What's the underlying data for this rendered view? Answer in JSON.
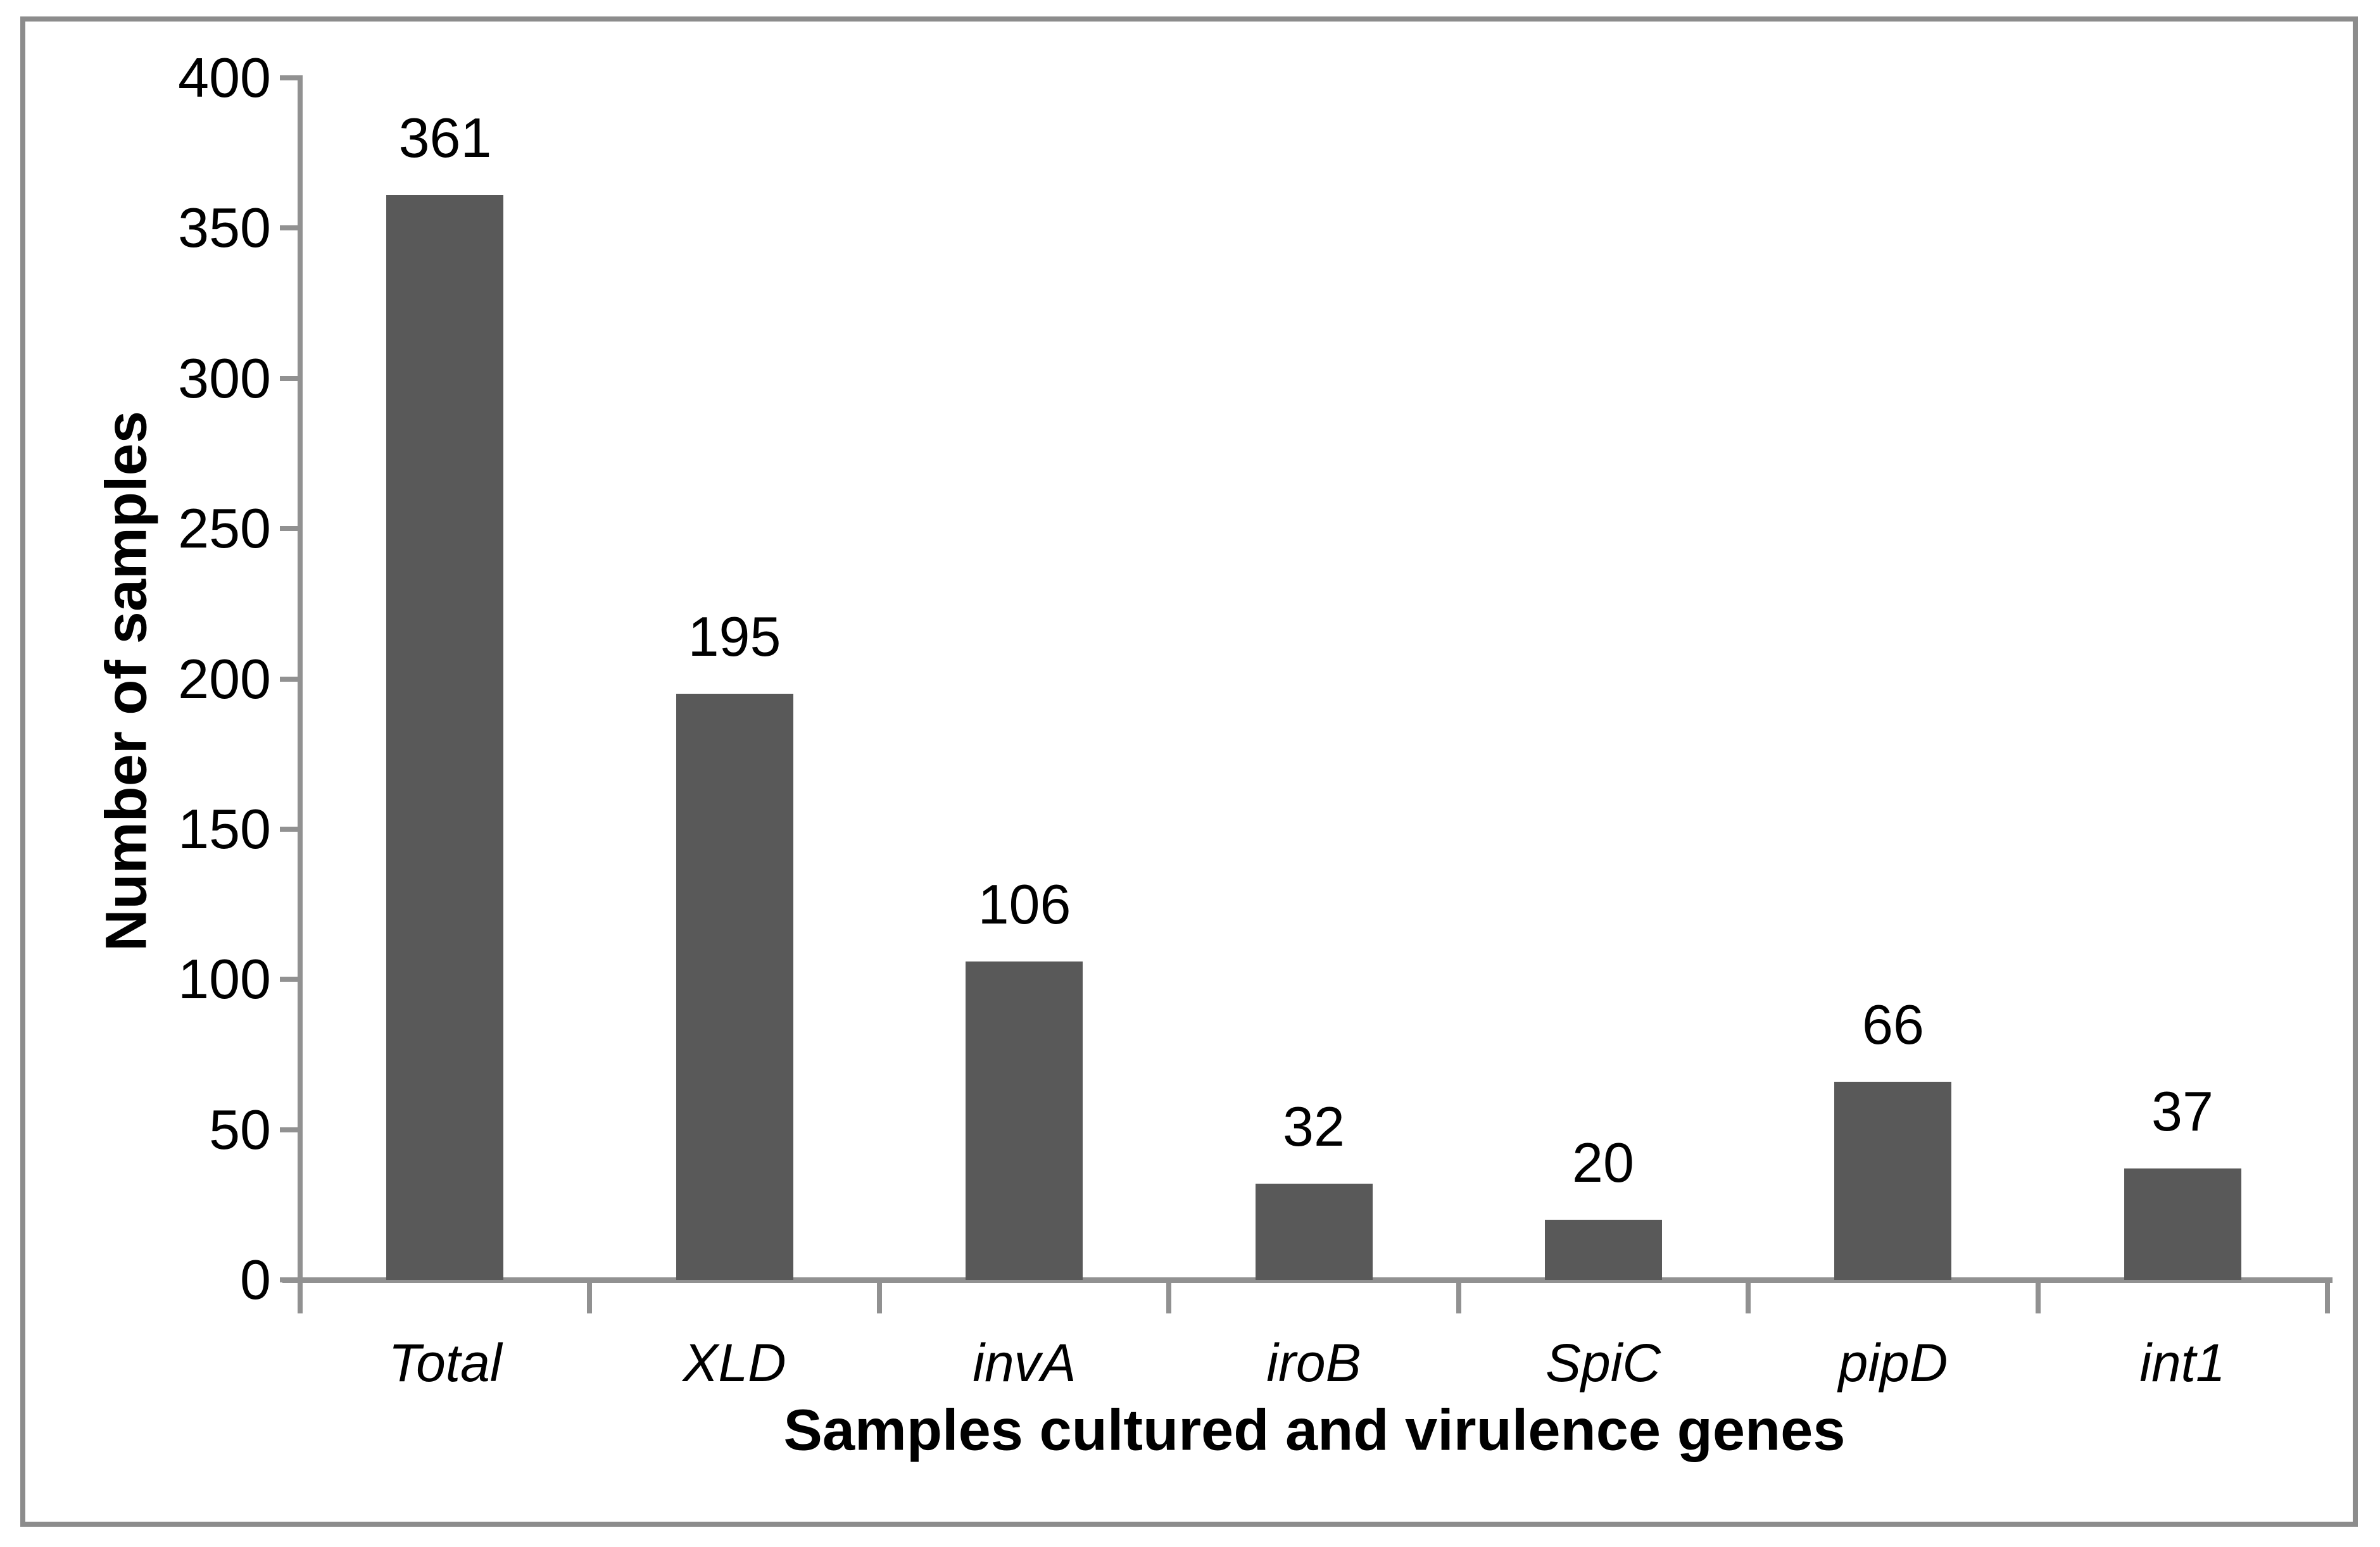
{
  "chart_data": {
    "type": "bar",
    "categories": [
      "Total",
      "XLD",
      "invA",
      "iroB",
      "SpiC",
      "pipD",
      "int1"
    ],
    "values": [
      361,
      195,
      106,
      32,
      20,
      66,
      37
    ],
    "title": "",
    "xlabel": "Samples cultured and virulence genes",
    "ylabel": "Number of samples",
    "ylim": [
      0,
      400
    ],
    "yticks": [
      0,
      50,
      100,
      150,
      200,
      250,
      300,
      350,
      400
    ],
    "grid": false,
    "legend": false,
    "bar_color": "#595959",
    "axis_color": "#919191",
    "frame_color": "#8C8C8C",
    "text_color": "#000000",
    "category_label_style": "italic"
  }
}
